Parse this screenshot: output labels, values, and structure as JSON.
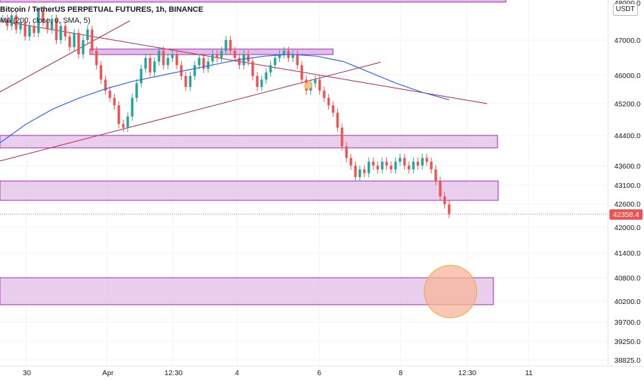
{
  "header": {
    "title": "Bitcoin / TetherUS PERPETUAL FUTURES, 1h, BINANCE",
    "indicator": "MA (200, close, 0, SMA, 5)"
  },
  "currency_button": "USDT",
  "colors": {
    "up": "#26a69a",
    "down": "#ef5350",
    "ma": "#2962ff",
    "trendline": "#b71c4a",
    "zone_fill": "#e1bee7",
    "zone_border": "#9c27b0",
    "circle_fill": "#f7b49a",
    "circle_border": "#f5a623",
    "price_tag": "#ef5350"
  },
  "chart_data": {
    "type": "candlestick",
    "title": "Bitcoin / TetherUS PERPETUAL FUTURES, 1h, BINANCE",
    "y_axis_ticks": [
      "48000.0",
      "47000.0",
      "46000.0",
      "45200.0",
      "44400.0",
      "43600.0",
      "43100.0",
      "42600.0",
      "42000.0",
      "41400.0",
      "40800.0",
      "40200.0",
      "39700.0",
      "39250.0",
      "38825.0"
    ],
    "x_axis_ticks": [
      "30",
      "Apr",
      "12:30",
      "4",
      "6",
      "8",
      "12:30",
      "11"
    ],
    "last_price": "42358.4",
    "price_scale": "log",
    "candle_closes_approx": [
      47600,
      47400,
      47700,
      47300,
      47500,
      47100,
      47400,
      47200,
      47800,
      47500,
      47300,
      47600,
      47000,
      47400,
      47100,
      46800,
      47200,
      46600,
      47000,
      47300,
      46700,
      46300,
      45900,
      45600,
      45400,
      45200,
      44700,
      44600,
      44900,
      45400,
      45800,
      46200,
      46500,
      46100,
      46400,
      46700,
      46300,
      46500,
      46600,
      46300,
      46000,
      45700,
      46000,
      46300,
      46500,
      46200,
      46400,
      46600,
      46500,
      46700,
      47000,
      46700,
      46500,
      46300,
      46600,
      46400,
      46000,
      45700,
      45900,
      46100,
      46300,
      46500,
      46600,
      46700,
      46500,
      46600,
      46300,
      45900,
      45600,
      45800,
      45900,
      45600,
      45400,
      45200,
      45000,
      44600,
      44100,
      43800,
      43600,
      43300,
      43500,
      43400,
      43700,
      43600,
      43500,
      43700,
      43600,
      43500,
      43700,
      43800,
      43600,
      43500,
      43700,
      43600,
      43800,
      43700,
      43500,
      43200,
      42800,
      42600,
      42358
    ],
    "ma_series_approx": [
      44200,
      44700,
      45100,
      45400,
      45650,
      45850,
      46000,
      46150,
      46300,
      46450,
      46550,
      46600,
      46550,
      46400,
      46100,
      45800,
      45550,
      45350
    ],
    "zones": [
      {
        "from": 44050,
        "to": 44300
      },
      {
        "from": 42700,
        "to": 43150
      },
      {
        "from": 40100,
        "to": 40800
      },
      {
        "from": 46550,
        "to": 46650
      },
      {
        "from": 47950,
        "to": 48000
      }
    ],
    "circle_marker_center_price": 40500
  }
}
